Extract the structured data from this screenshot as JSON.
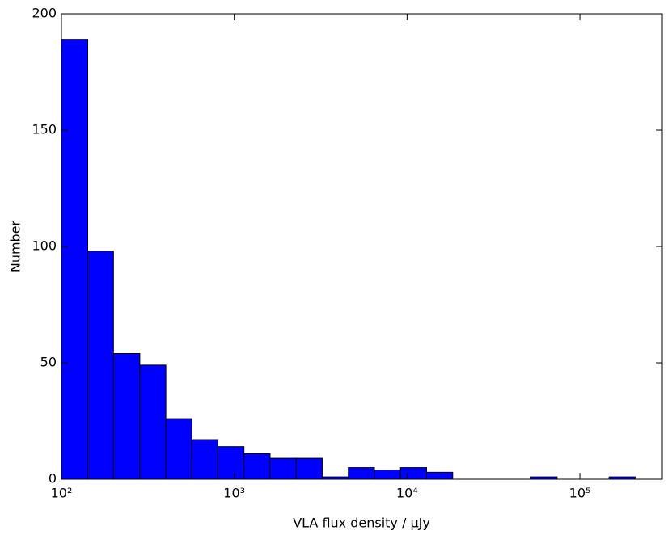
{
  "chart_data": {
    "type": "histogram",
    "xlabel": "VLA flux density / μJy",
    "ylabel": "Number",
    "bins": [
      100,
      142,
      200,
      284,
      402,
      569,
      804,
      1138,
      1611,
      2280,
      3228,
      4571,
      6471,
      9162,
      12970,
      18365,
      26002,
      36813,
      52119,
      73790,
      104472,
      147571,
      208930
    ],
    "values": [
      189,
      98,
      54,
      49,
      26,
      17,
      14,
      11,
      9,
      9,
      1,
      5,
      4,
      5,
      3,
      0,
      0,
      0,
      1,
      0,
      0,
      1
    ],
    "color": "#0000ff",
    "edgecolor": "#000000",
    "xscale": "log",
    "xlim": [
      100,
      300000
    ],
    "xticks": [
      {
        "value": 100,
        "label": "10²"
      },
      {
        "value": 1000,
        "label": "10³"
      },
      {
        "value": 10000,
        "label": "10⁴"
      },
      {
        "value": 100000,
        "label": "10⁵"
      }
    ],
    "ylim": [
      0,
      200
    ],
    "yticks": [
      0,
      50,
      100,
      150,
      200
    ]
  }
}
